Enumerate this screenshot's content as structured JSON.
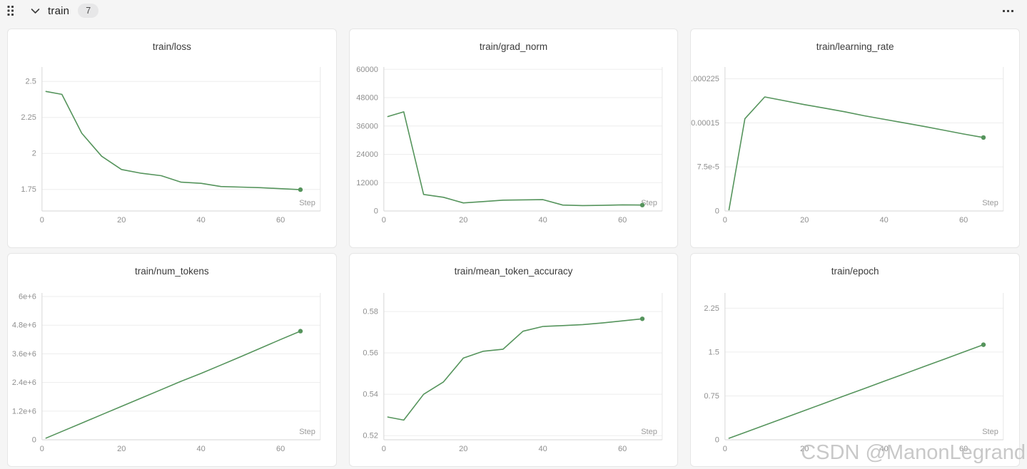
{
  "header": {
    "title": "train",
    "panel_count": "7"
  },
  "watermark": "CSDN @ManonLegrand",
  "colors": {
    "series_green": "#55945c",
    "grid_line": "#ededed",
    "axis_line": "#d6d6d6",
    "plot_right_border": "#e7e7e7",
    "tick_text": "#8f8f8f",
    "card_border": "#e6e6e6",
    "page_background": "#f5f5f5"
  },
  "chart_data": [
    {
      "type": "line",
      "title": "train/loss",
      "xlabel": "Step",
      "x": [
        1,
        5,
        10,
        15,
        20,
        25,
        30,
        35,
        40,
        45,
        50,
        55,
        60,
        65
      ],
      "y": [
        2.43,
        2.41,
        2.14,
        1.98,
        1.888,
        1.862,
        1.845,
        1.8,
        1.792,
        1.77,
        1.766,
        1.762,
        1.755,
        1.748
      ],
      "xlim": [
        0,
        70
      ],
      "ylim": [
        1.6,
        2.6
      ],
      "x_ticks": [
        0,
        20,
        40,
        60
      ],
      "y_ticks": [
        1.75,
        2,
        2.25,
        2.5
      ],
      "y_tick_labels": [
        "1.75",
        "2",
        "2.25",
        "2.5"
      ],
      "grid": true,
      "endpoint_dot": true
    },
    {
      "type": "line",
      "title": "train/grad_norm",
      "xlabel": "Step",
      "x": [
        1,
        5,
        10,
        15,
        20,
        25,
        30,
        35,
        40,
        45,
        50,
        55,
        60,
        65
      ],
      "y": [
        40000,
        42000,
        7000,
        5800,
        3400,
        4000,
        4600,
        4700,
        4800,
        2500,
        2300,
        2400,
        2600,
        2500
      ],
      "xlim": [
        0,
        70
      ],
      "ylim": [
        0,
        61000
      ],
      "x_ticks": [
        0,
        20,
        40,
        60
      ],
      "y_ticks": [
        0,
        12000,
        24000,
        36000,
        48000,
        60000
      ],
      "y_tick_labels": [
        "0",
        "12000",
        "24000",
        "36000",
        "48000",
        "60000"
      ],
      "grid": true,
      "endpoint_dot": true
    },
    {
      "type": "line",
      "title": "train/learning_rate",
      "xlabel": "Step",
      "x": [
        1,
        5,
        10,
        15,
        20,
        25,
        30,
        35,
        40,
        45,
        50,
        55,
        60,
        65
      ],
      "y": [
        2e-06,
        0.000157,
        0.000194,
        0.0001875,
        0.000181,
        0.000175,
        0.000169,
        0.000162,
        0.000156,
        0.00015,
        0.000144,
        0.0001375,
        0.000131,
        0.000125
      ],
      "xlim": [
        0,
        70
      ],
      "ylim": [
        0,
        0.000245
      ],
      "x_ticks": [
        0,
        20,
        40,
        60
      ],
      "y_ticks": [
        0,
        7.5e-05,
        0.00015,
        0.000225
      ],
      "y_tick_labels": [
        "0",
        "7.5e-5",
        "0.00015",
        "0.000225"
      ],
      "grid": true,
      "endpoint_dot": true
    },
    {
      "type": "line",
      "title": "train/num_tokens",
      "xlabel": "Step",
      "x": [
        1,
        5,
        10,
        15,
        20,
        25,
        30,
        35,
        40,
        45,
        50,
        55,
        60,
        65
      ],
      "y": [
        70000,
        350000,
        700000,
        1050000,
        1400000,
        1750000,
        2100000,
        2450000,
        2780000,
        3130000,
        3480000,
        3840000,
        4200000,
        4550000
      ],
      "xlim": [
        0,
        70
      ],
      "ylim": [
        0,
        6150000
      ],
      "x_ticks": [
        0,
        20,
        40,
        60
      ],
      "y_ticks": [
        0,
        1200000,
        2400000,
        3600000,
        4800000,
        6000000
      ],
      "y_tick_labels": [
        "0",
        "1.2e+6",
        "2.4e+6",
        "3.6e+6",
        "4.8e+6",
        "6e+6"
      ],
      "grid": true,
      "endpoint_dot": true
    },
    {
      "type": "line",
      "title": "train/mean_token_accuracy",
      "xlabel": "Step",
      "x": [
        1,
        5,
        10,
        15,
        20,
        25,
        30,
        35,
        40,
        45,
        50,
        55,
        60,
        65
      ],
      "y": [
        0.529,
        0.5275,
        0.54,
        0.546,
        0.5575,
        0.5608,
        0.5618,
        0.5705,
        0.5728,
        0.5732,
        0.5737,
        0.5745,
        0.5755,
        0.5765
      ],
      "xlim": [
        0,
        70
      ],
      "ylim": [
        0.518,
        0.589
      ],
      "x_ticks": [
        0,
        20,
        40,
        60
      ],
      "y_ticks": [
        0.52,
        0.54,
        0.56,
        0.58
      ],
      "y_tick_labels": [
        "0.52",
        "0.54",
        "0.56",
        "0.58"
      ],
      "grid": true,
      "endpoint_dot": true
    },
    {
      "type": "line",
      "title": "train/epoch",
      "xlabel": "Step",
      "x": [
        1,
        5,
        10,
        15,
        20,
        25,
        30,
        35,
        40,
        45,
        50,
        55,
        60,
        65
      ],
      "y": [
        0.025,
        0.125,
        0.25,
        0.375,
        0.5,
        0.625,
        0.75,
        0.875,
        1.0,
        1.125,
        1.25,
        1.375,
        1.5,
        1.625
      ],
      "xlim": [
        0,
        70
      ],
      "ylim": [
        0,
        2.51
      ],
      "x_ticks": [
        0,
        20,
        40,
        60
      ],
      "y_ticks": [
        0,
        0.75,
        1.5,
        2.25
      ],
      "y_tick_labels": [
        "0",
        "0.75",
        "1.5",
        "2.25"
      ],
      "grid": true,
      "endpoint_dot": true
    }
  ]
}
